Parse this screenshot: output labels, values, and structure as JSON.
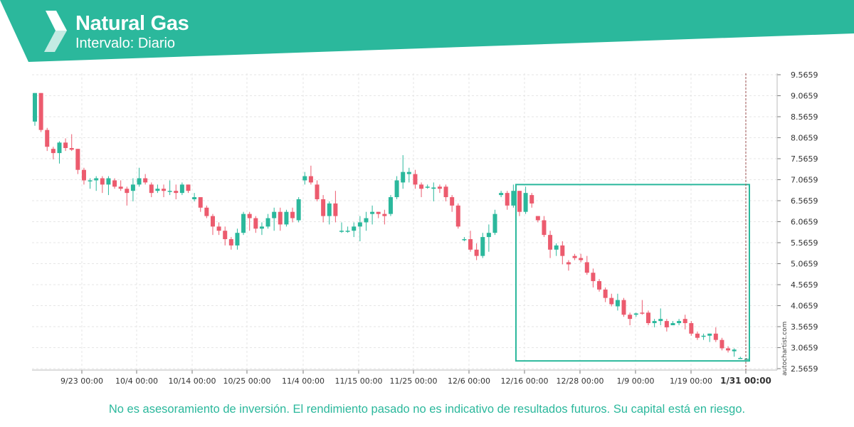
{
  "header": {
    "title": "Natural Gas",
    "subtitle": "Intervalo: Diario",
    "brand_color": "#2bb89c",
    "logo_icon": "autochartist-logo-icon"
  },
  "watermark": "autochartist.com",
  "disclaimer": "No es asesoramiento de inversión. El rendimiento pasado no es indicativo de resultados futuros. Su capital está en riesgo.",
  "chart_data": {
    "type": "candlestick",
    "title": "Natural Gas",
    "interval": "Diario",
    "up_color": "#2bb89c",
    "down_color": "#ec5b6e",
    "y_ticks": [
      "9.5659",
      "9.0659",
      "8.5659",
      "8.0659",
      "7.5659",
      "7.0659",
      "6.5659",
      "6.0659",
      "5.5659",
      "5.0659",
      "4.5659",
      "4.0659",
      "3.5659",
      "3.0659",
      "2.5659"
    ],
    "ylim": [
      2.5659,
      9.5659
    ],
    "x_ticks": [
      "9/23 00:00",
      "10/4 00:00",
      "10/14 00:00",
      "10/25 00:00",
      "11/4 00:00",
      "11/15 00:00",
      "11/25 00:00",
      "12/6 00:00",
      "12/16 00:00",
      "12/28 00:00",
      "1/9 00:00",
      "1/19 00:00",
      "1/31 00:00"
    ],
    "candles": [
      [
        8.45,
        9.13,
        8.35,
        9.13
      ],
      [
        9.13,
        9.13,
        8.2,
        8.25
      ],
      [
        8.25,
        8.3,
        7.75,
        7.85
      ],
      [
        7.8,
        7.85,
        7.55,
        7.7
      ],
      [
        7.7,
        7.98,
        7.45,
        7.95
      ],
      [
        7.95,
        8.05,
        7.75,
        7.82
      ],
      [
        7.82,
        8.15,
        7.75,
        7.78
      ],
      [
        7.8,
        7.8,
        7.2,
        7.3
      ],
      [
        7.3,
        7.35,
        6.95,
        7.05
      ],
      [
        7.05,
        7.1,
        6.85,
        7.05
      ],
      [
        7.05,
        7.15,
        6.8,
        7.1
      ],
      [
        7.1,
        7.15,
        6.75,
        6.95
      ],
      [
        6.95,
        7.15,
        6.7,
        7.1
      ],
      [
        7.05,
        7.1,
        6.85,
        6.9
      ],
      [
        6.9,
        7.05,
        6.8,
        6.85
      ],
      [
        6.85,
        6.9,
        6.45,
        6.75
      ],
      [
        6.8,
        7.1,
        6.55,
        6.95
      ],
      [
        6.95,
        7.35,
        6.9,
        7.1
      ],
      [
        7.1,
        7.2,
        6.95,
        7.0
      ],
      [
        6.95,
        7.0,
        6.65,
        6.75
      ],
      [
        6.8,
        6.95,
        6.75,
        6.85
      ],
      [
        6.85,
        6.95,
        6.65,
        6.8
      ],
      [
        6.8,
        7.05,
        6.7,
        6.8
      ],
      [
        6.8,
        6.95,
        6.6,
        6.75
      ],
      [
        6.75,
        7.0,
        6.7,
        6.95
      ],
      [
        6.95,
        6.95,
        6.75,
        6.8
      ],
      [
        6.6,
        6.75,
        6.55,
        6.65
      ],
      [
        6.65,
        6.65,
        6.3,
        6.4
      ],
      [
        6.4,
        6.45,
        6.15,
        6.2
      ],
      [
        6.2,
        6.25,
        5.75,
        5.95
      ],
      [
        5.95,
        6.05,
        5.75,
        5.85
      ],
      [
        5.85,
        5.95,
        5.5,
        5.65
      ],
      [
        5.65,
        5.7,
        5.4,
        5.5
      ],
      [
        5.5,
        5.9,
        5.4,
        5.8
      ],
      [
        5.8,
        6.3,
        5.75,
        6.25
      ],
      [
        6.25,
        6.3,
        5.85,
        6.15
      ],
      [
        6.15,
        6.2,
        5.8,
        5.9
      ],
      [
        5.9,
        6.05,
        5.75,
        5.95
      ],
      [
        5.95,
        6.25,
        5.9,
        6.15
      ],
      [
        6.15,
        6.4,
        5.85,
        6.3
      ],
      [
        6.3,
        6.4,
        5.85,
        6.0
      ],
      [
        6.0,
        6.35,
        5.95,
        6.3
      ],
      [
        6.3,
        6.4,
        6.05,
        6.15
      ],
      [
        6.1,
        6.65,
        6.05,
        6.6
      ],
      [
        7.05,
        7.25,
        6.95,
        7.15
      ],
      [
        7.15,
        7.4,
        6.95,
        7.0
      ],
      [
        6.95,
        7.05,
        6.55,
        6.6
      ],
      [
        6.6,
        6.7,
        6.05,
        6.2
      ],
      [
        6.2,
        6.55,
        6.0,
        6.5
      ],
      [
        6.5,
        6.8,
        6.05,
        6.2
      ],
      [
        5.85,
        6.05,
        5.8,
        5.85
      ],
      [
        5.85,
        5.95,
        5.8,
        5.85
      ],
      [
        5.85,
        6.05,
        5.7,
        5.95
      ],
      [
        5.95,
        6.2,
        5.6,
        6.05
      ],
      [
        6.05,
        6.3,
        5.85,
        6.15
      ],
      [
        6.25,
        6.45,
        6.0,
        6.3
      ],
      [
        6.3,
        6.3,
        6.15,
        6.25
      ],
      [
        6.25,
        6.35,
        6.0,
        6.2
      ],
      [
        6.25,
        6.7,
        6.2,
        6.65
      ],
      [
        6.65,
        7.15,
        6.6,
        7.05
      ],
      [
        7.0,
        7.65,
        6.85,
        7.25
      ],
      [
        7.2,
        7.35,
        7.0,
        7.25
      ],
      [
        7.2,
        7.3,
        6.85,
        6.95
      ],
      [
        6.95,
        7.0,
        6.65,
        6.85
      ],
      [
        6.9,
        6.95,
        6.85,
        6.9
      ],
      [
        6.85,
        7.0,
        6.55,
        6.88
      ],
      [
        6.9,
        6.95,
        6.75,
        6.85
      ],
      [
        6.9,
        6.95,
        6.55,
        6.65
      ],
      [
        6.65,
        6.7,
        6.3,
        6.45
      ],
      [
        6.45,
        6.5,
        5.9,
        5.95
      ],
      [
        5.65,
        5.7,
        5.6,
        5.65
      ],
      [
        5.65,
        5.85,
        5.35,
        5.4
      ],
      [
        5.4,
        5.55,
        5.15,
        5.25
      ],
      [
        5.25,
        5.8,
        5.2,
        5.7
      ],
      [
        5.7,
        6.0,
        5.35,
        5.8
      ],
      [
        5.8,
        6.35,
        5.75,
        6.25
      ],
      [
        6.7,
        6.8,
        6.65,
        6.75
      ],
      [
        6.75,
        6.8,
        6.35,
        6.45
      ],
      [
        6.45,
        6.95,
        6.4,
        6.8
      ],
      [
        6.8,
        6.8,
        6.2,
        6.3
      ],
      [
        6.3,
        6.9,
        6.25,
        6.75
      ],
      [
        6.7,
        6.75,
        6.4,
        6.5
      ],
      [
        6.2,
        6.2,
        6.05,
        6.1
      ],
      [
        6.1,
        6.2,
        5.7,
        5.75
      ],
      [
        5.75,
        5.85,
        5.2,
        5.4
      ],
      [
        5.4,
        5.55,
        5.25,
        5.5
      ],
      [
        5.5,
        5.6,
        5.05,
        5.25
      ],
      [
        5.1,
        5.15,
        4.9,
        5.05
      ],
      [
        5.25,
        5.3,
        5.15,
        5.2
      ],
      [
        5.2,
        5.3,
        5.1,
        5.15
      ],
      [
        5.1,
        5.25,
        4.8,
        4.85
      ],
      [
        4.85,
        4.95,
        4.5,
        4.65
      ],
      [
        4.65,
        4.7,
        4.4,
        4.45
      ],
      [
        4.45,
        4.5,
        4.15,
        4.25
      ],
      [
        4.25,
        4.35,
        4.05,
        4.1
      ],
      [
        4.05,
        4.35,
        3.95,
        4.2
      ],
      [
        4.2,
        4.25,
        3.8,
        3.85
      ],
      [
        3.85,
        3.9,
        3.6,
        3.75
      ],
      [
        3.85,
        3.9,
        3.8,
        3.88
      ],
      [
        3.9,
        4.2,
        3.85,
        3.88
      ],
      [
        3.9,
        3.95,
        3.6,
        3.65
      ],
      [
        3.65,
        3.75,
        3.55,
        3.7
      ],
      [
        3.7,
        4.0,
        3.6,
        3.75
      ],
      [
        3.7,
        3.75,
        3.45,
        3.55
      ],
      [
        3.6,
        3.7,
        3.6,
        3.65
      ],
      [
        3.65,
        3.75,
        3.6,
        3.7
      ],
      [
        3.75,
        3.85,
        3.5,
        3.65
      ],
      [
        3.65,
        3.7,
        3.35,
        3.4
      ],
      [
        3.4,
        3.45,
        3.25,
        3.3
      ],
      [
        3.35,
        3.4,
        3.25,
        3.35
      ],
      [
        3.35,
        3.4,
        3.2,
        3.4
      ],
      [
        3.4,
        3.55,
        3.2,
        3.25
      ],
      [
        3.25,
        3.3,
        3.0,
        3.05
      ],
      [
        3.05,
        3.1,
        2.95,
        3.0
      ],
      [
        2.98,
        3.05,
        2.85,
        3.02
      ],
      [
        2.82,
        2.85,
        2.8,
        2.82
      ],
      [
        2.8,
        2.82,
        2.78,
        2.8
      ]
    ],
    "pattern_box": {
      "start_candle": 79,
      "end_candle": 116,
      "y_top": 6.95,
      "y_bottom": 2.75
    }
  }
}
